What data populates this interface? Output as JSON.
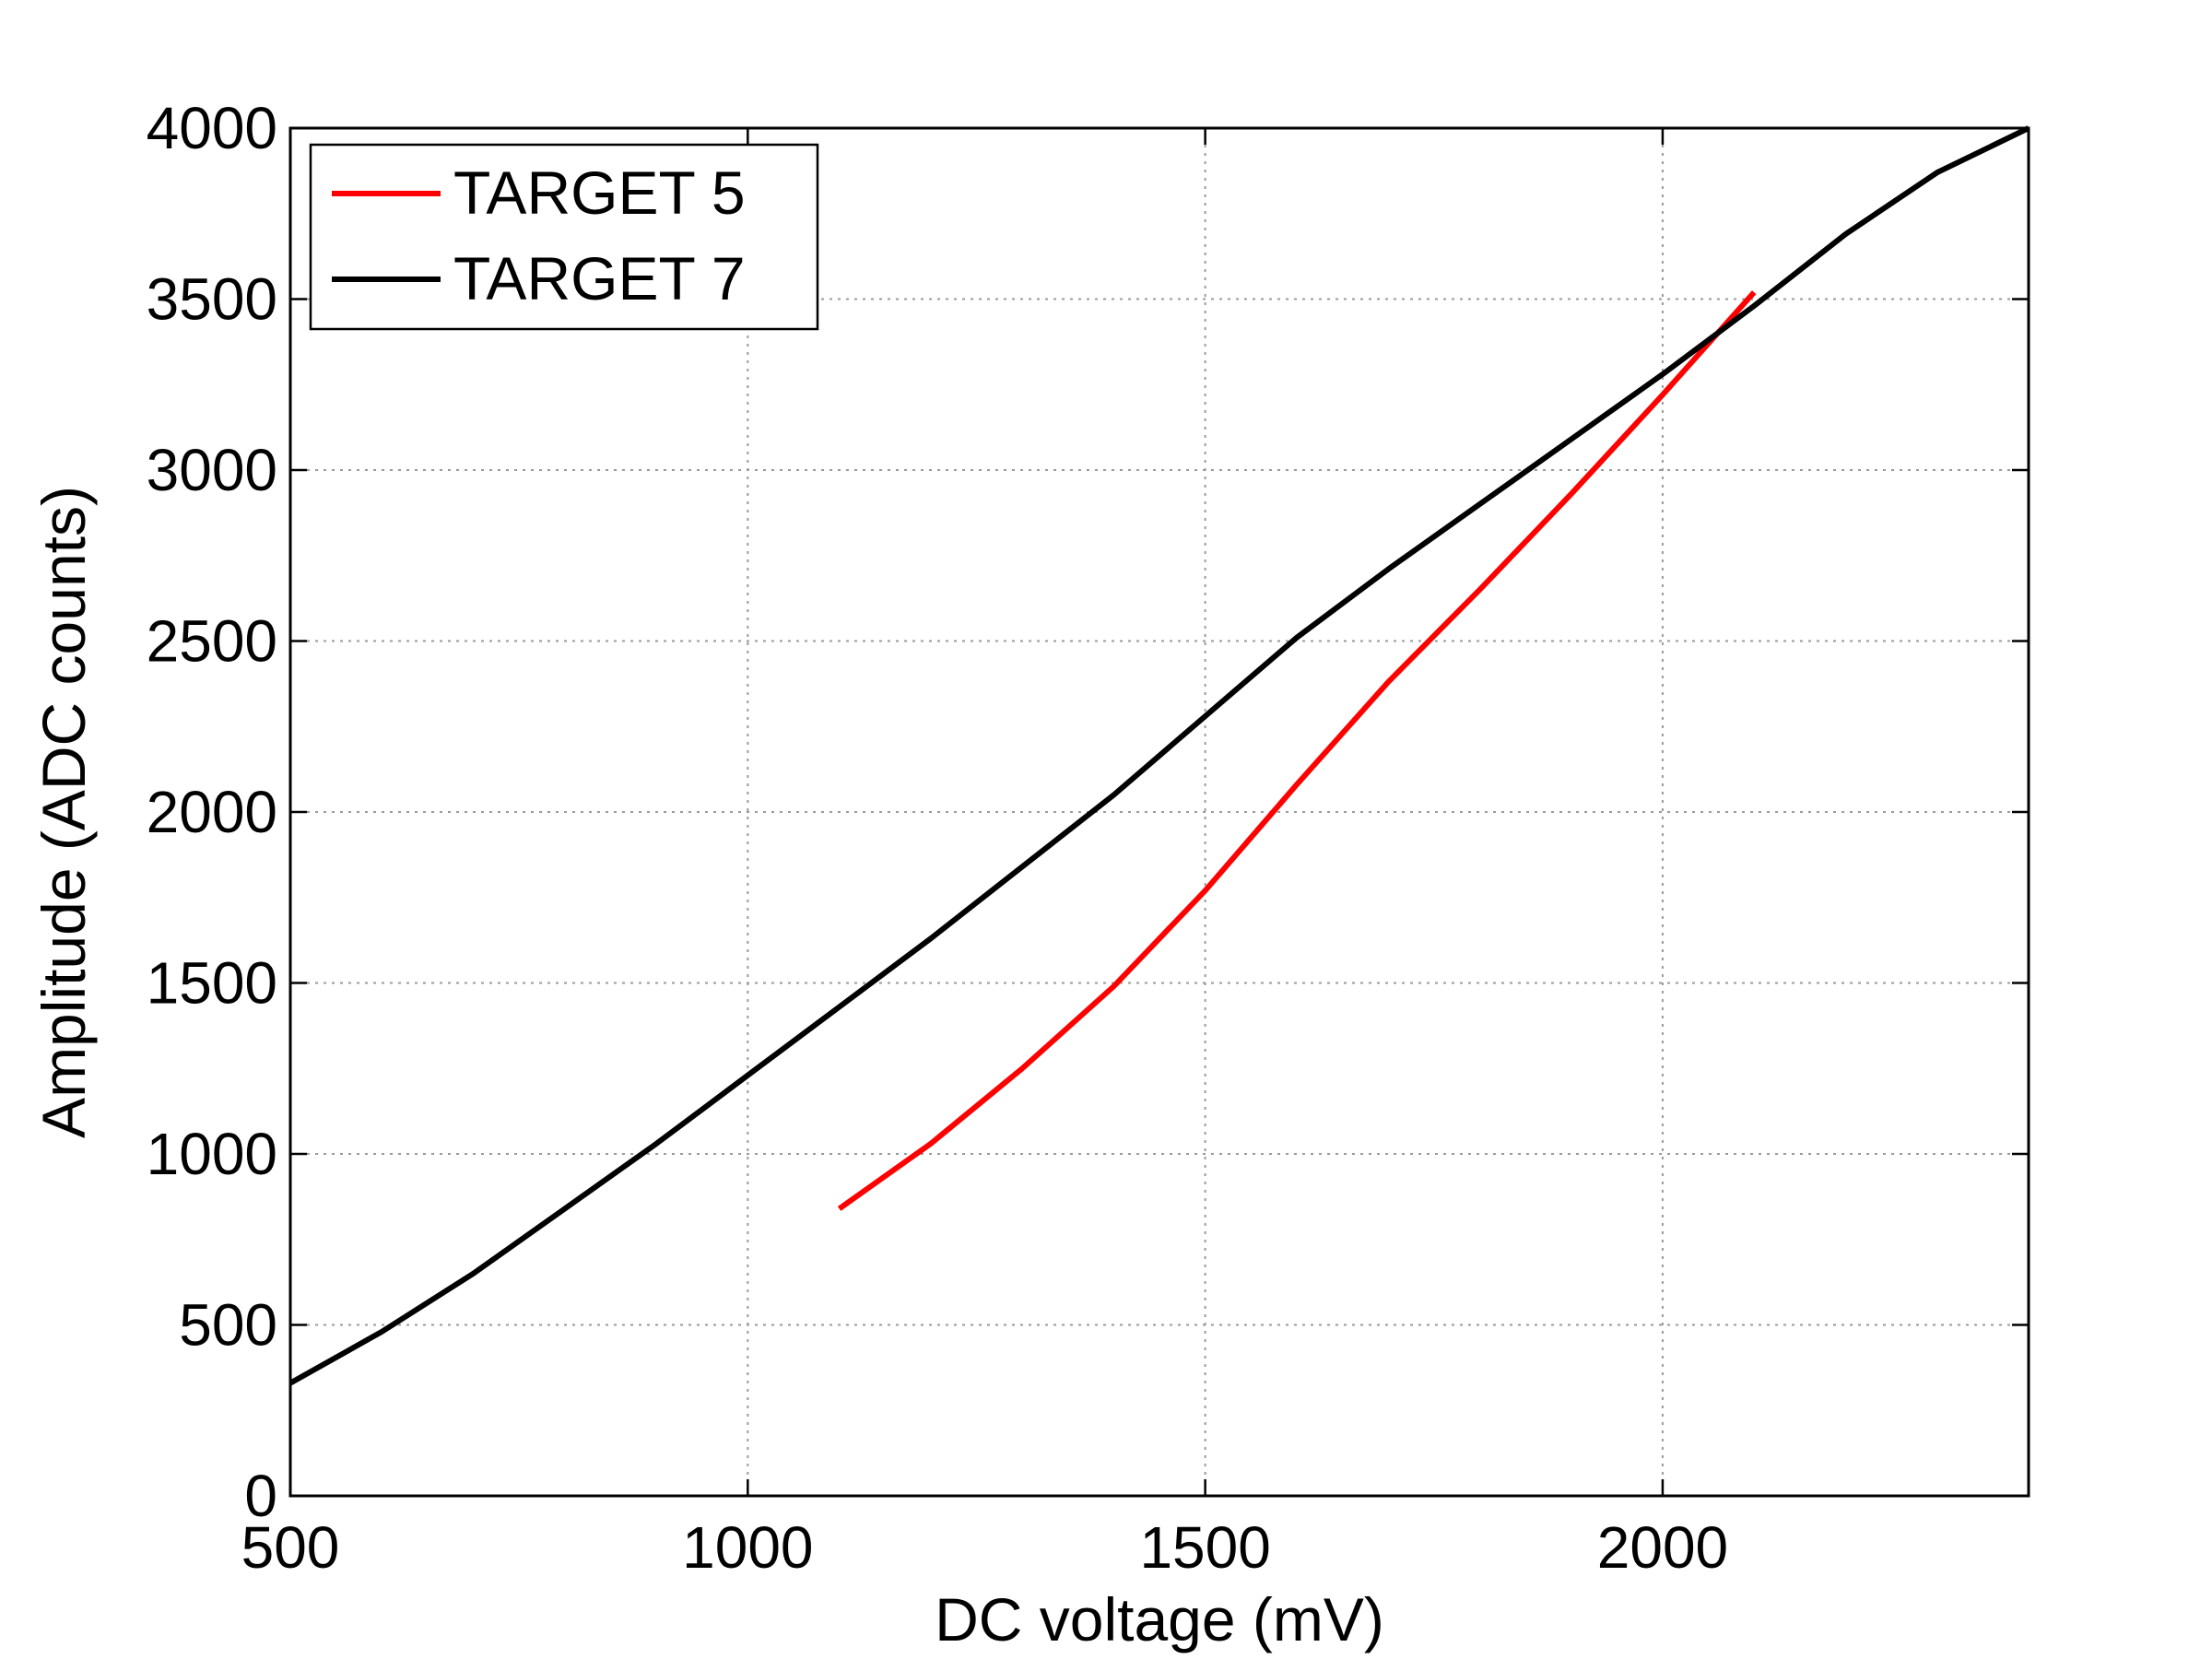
{
  "chart_data": {
    "type": "line",
    "title": "",
    "xlabel": "DC voltage (mV)",
    "ylabel": "Amplitude (ADC counts)",
    "xlim": [
      500,
      2400
    ],
    "ylim": [
      0,
      4000
    ],
    "xticks": [
      500,
      1000,
      1500,
      2000
    ],
    "yticks": [
      0,
      500,
      1000,
      1500,
      2000,
      2500,
      3000,
      3500,
      4000
    ],
    "grid": true,
    "legend_position": "top-left",
    "series": [
      {
        "name": "TARGET 5",
        "color": "#ff0000",
        "x": [
          1100,
          1200,
          1300,
          1400,
          1500,
          1600,
          1700,
          1800,
          1900,
          2000,
          2100
        ],
        "y": [
          840,
          1030,
          1250,
          1490,
          1770,
          2080,
          2380,
          2650,
          2930,
          3220,
          3520
        ]
      },
      {
        "name": "TARGET 7",
        "color": "#000000",
        "x": [
          500,
          600,
          700,
          800,
          900,
          1000,
          1100,
          1200,
          1300,
          1400,
          1500,
          1600,
          1700,
          1800,
          1900,
          2000,
          2100,
          2200,
          2300,
          2400
        ],
        "y": [
          330,
          480,
          650,
          840,
          1030,
          1230,
          1430,
          1630,
          1840,
          2050,
          2280,
          2510,
          2710,
          2900,
          3090,
          3280,
          3480,
          3690,
          3870,
          4000
        ]
      }
    ]
  }
}
